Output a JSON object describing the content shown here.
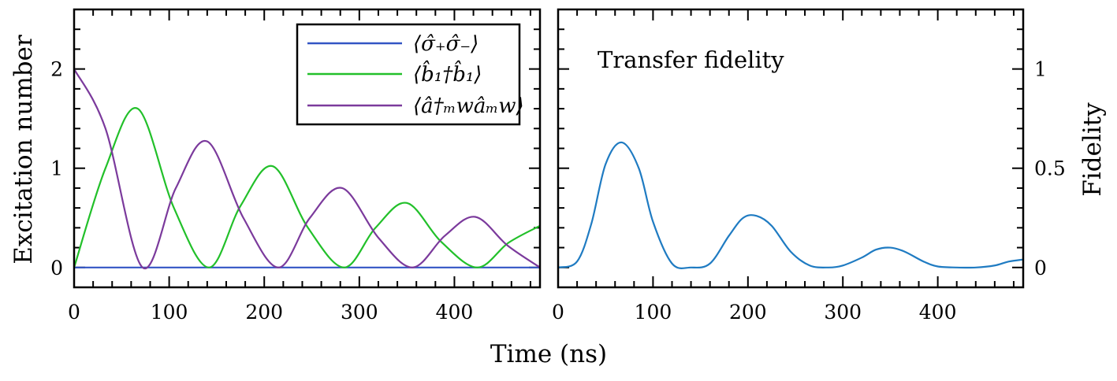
{
  "xlabel": "Time (ns)",
  "colors": {
    "sigma": "#3355c4",
    "phonon": "#22c02a",
    "microwave": "#7b3a9c",
    "fidelity": "#1f7bc2",
    "frame": "#000000"
  },
  "chart_data": [
    {
      "type": "line",
      "xlabel": "",
      "ylabel": "Excitation number",
      "xlim": [
        0,
        490
      ],
      "ylim": [
        -0.2,
        2.6
      ],
      "x_ticks": [
        0,
        100,
        200,
        300,
        400
      ],
      "y_ticks": [
        0,
        1,
        2
      ],
      "legend_position": "top-right",
      "series": [
        {
          "name": "⟨σ̂₊σ̂₋⟩",
          "color": "#3355c4",
          "x": [
            0,
            490
          ],
          "y": [
            0,
            0
          ]
        },
        {
          "name": "⟨b̂₁†b̂₁⟩",
          "color": "#22c02a",
          "x": [
            0,
            33,
            67,
            105,
            142,
            175,
            209,
            246,
            284,
            317,
            350,
            386,
            424,
            457,
            490
          ],
          "y": [
            0,
            1.0,
            1.6,
            0.6,
            0,
            0.62,
            1.02,
            0.4,
            0,
            0.4,
            0.65,
            0.26,
            0,
            0.25,
            0.42
          ]
        },
        {
          "name": "⟨â†ₘwâₘw⟩",
          "color": "#7b3a9c",
          "x": [
            0,
            33,
            72,
            107,
            140,
            178,
            215,
            248,
            282,
            320,
            356,
            390,
            422,
            456,
            490
          ],
          "y": [
            2.0,
            1.4,
            0,
            0.8,
            1.27,
            0.5,
            0,
            0.5,
            0.8,
            0.3,
            0,
            0.32,
            0.51,
            0.22,
            0
          ]
        }
      ]
    },
    {
      "type": "line",
      "xlabel": "",
      "ylabel": "Fidelity",
      "xlim": [
        0,
        490
      ],
      "ylim": [
        -0.1,
        1.3
      ],
      "x_ticks": [
        0,
        100,
        200,
        300,
        400
      ],
      "y_ticks": [
        0,
        0.5,
        1
      ],
      "annotation": "Transfer fidelity",
      "series": [
        {
          "color": "#1f7bc2",
          "x": [
            0,
            20,
            35,
            50,
            67,
            85,
            100,
            120,
            140,
            160,
            180,
            195,
            209,
            225,
            245,
            265,
            285,
            300,
            320,
            335,
            350,
            365,
            385,
            400,
            420,
            440,
            460,
            475,
            490
          ],
          "y": [
            0,
            0.03,
            0.22,
            0.52,
            0.63,
            0.5,
            0.23,
            0.02,
            0,
            0.02,
            0.16,
            0.25,
            0.26,
            0.21,
            0.08,
            0.01,
            0,
            0.01,
            0.05,
            0.09,
            0.1,
            0.08,
            0.03,
            0.005,
            0,
            0,
            0.01,
            0.03,
            0.04
          ]
        }
      ]
    }
  ]
}
